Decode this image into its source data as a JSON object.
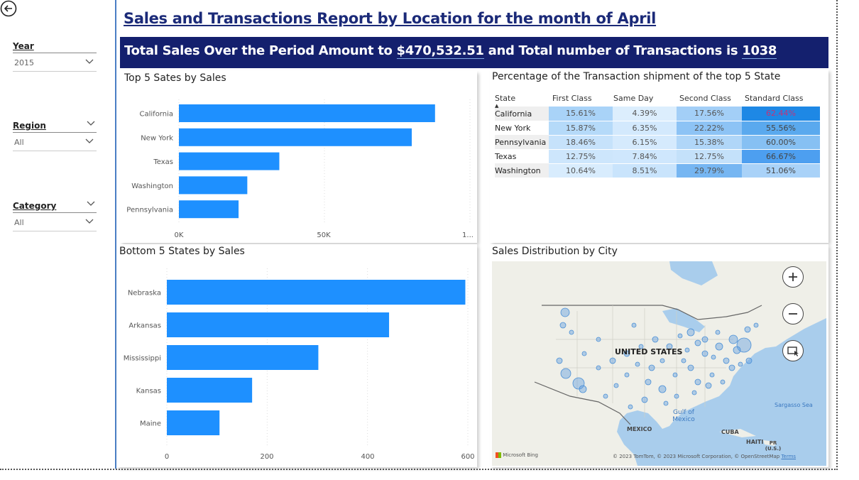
{
  "filters": [
    {
      "title": "Year",
      "value": "2015"
    },
    {
      "title": "Region",
      "value": "All"
    },
    {
      "title": "Category",
      "value": "All"
    }
  ],
  "header": {
    "title": "Sales and Transactions Report  by Location  for the month of April",
    "banner_prefix": "Total Sales Over the Period Amount to ",
    "total_sales": "$470,532.51",
    "banner_mid": " and Total number of Transactions is ",
    "transactions": "1038"
  },
  "top5": {
    "title": "Top 5 Sates by Sales",
    "tick_labels": [
      "0K",
      "50K",
      "1..."
    ]
  },
  "bottom5": {
    "title": "Bottom 5 States by Sales",
    "tick_labels": [
      "0",
      "200",
      "400",
      "600"
    ]
  },
  "shipment_table": {
    "title": "Percentage of the Transaction shipment of the top 5 State",
    "columns": [
      "State",
      "First Class",
      "Same Day",
      "Second Class",
      "Standard Class"
    ],
    "rows": [
      {
        "state": "California",
        "values": [
          "15.61%",
          "4.39%",
          "17.56%",
          "62.44%"
        ]
      },
      {
        "state": "New York",
        "values": [
          "15.87%",
          "6.35%",
          "22.22%",
          "55.56%"
        ]
      },
      {
        "state": "Pennsylvania",
        "values": [
          "18.46%",
          "6.15%",
          "15.38%",
          "60.00%"
        ]
      },
      {
        "state": "Texas",
        "values": [
          "12.75%",
          "7.84%",
          "12.75%",
          "66.67%"
        ]
      },
      {
        "state": "Washington",
        "values": [
          "10.64%",
          "8.51%",
          "29.79%",
          "51.06%"
        ]
      }
    ],
    "colors": [
      "#b7dcfa",
      "#d3eafd",
      "#8cc4f5",
      "#1e88e5"
    ]
  },
  "map": {
    "title": "Sales Distribution by City",
    "labels": {
      "country": "UNITED STATES",
      "gulf": "Gulf of Mexico",
      "mexico": "MEXICO",
      "cuba": "CUBA",
      "haiti": "HAITI",
      "pr": "PR (U.S.)",
      "sargasso": "Sargasso Sea",
      "bing": "Microsoft Bing",
      "copyright": "© 2023 TomTom, © 2023 Microsoft Corporation, © OpenStreetMap",
      "terms": "Terms"
    },
    "icons": [
      "zoom-in-icon",
      "zoom-out-icon",
      "select-region-icon"
    ]
  },
  "chart_data": [
    {
      "type": "bar",
      "orientation": "horizontal",
      "title": "Top 5 Sates by Sales",
      "categories": [
        "California",
        "New York",
        "Texas",
        "Washington",
        "Pennsylvania"
      ],
      "values": [
        88000,
        80000,
        34500,
        23500,
        20500
      ],
      "xlim": [
        0,
        100000
      ],
      "grid": true,
      "color": "#1e90ff"
    },
    {
      "type": "bar",
      "orientation": "horizontal",
      "title": "Bottom 5 States by Sales",
      "categories": [
        "Nebraska",
        "Arkansas",
        "Mississippi",
        "Kansas",
        "Maine"
      ],
      "values": [
        595,
        443,
        302,
        170,
        105
      ],
      "xlim": [
        0,
        600
      ],
      "grid": true,
      "color": "#1e90ff"
    }
  ]
}
